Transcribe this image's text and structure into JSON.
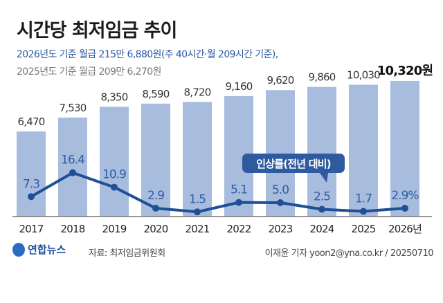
{
  "title": "시간당 최저임금 추이",
  "subtitle_2026": "2026년도 기준 월급 215만 6,880원(주 40시간·월 209시간 기준),",
  "subtitle_2025": "2025년도 기준 월급 209만 6,270원",
  "footer": {
    "logo": "연합뉴스",
    "source": "자료: 최저임금위원회",
    "credit": "이재윤 기자 yoon2@yna.co.kr / 20250710"
  },
  "chart_data": {
    "type": "bar+line",
    "categories": [
      "2017",
      "2018",
      "2019",
      "2020",
      "2021",
      "2022",
      "2023",
      "2024",
      "2025",
      "2026년"
    ],
    "series": [
      {
        "type": "bar",
        "values": [
          6470,
          7530,
          8350,
          8590,
          8720,
          9160,
          9620,
          9860,
          10030,
          10320
        ],
        "labels": [
          "6,470",
          "7,530",
          "8,350",
          "8,590",
          "8,720",
          "9,160",
          "9,620",
          "9,860",
          "10,030",
          "10,320원"
        ],
        "color": "#a8bddd"
      },
      {
        "type": "line",
        "name": "인상률(전년 대비)",
        "values": [
          7.3,
          16.4,
          10.9,
          2.9,
          1.5,
          5.1,
          5.0,
          2.5,
          1.7,
          2.9
        ],
        "labels": [
          "7.3",
          "16.4",
          "10.9",
          "2.9",
          "1.5",
          "5.1",
          "5.0",
          "2.5",
          "1.7",
          "2.9%"
        ],
        "color": "#1f4f97"
      }
    ],
    "grid": false
  }
}
